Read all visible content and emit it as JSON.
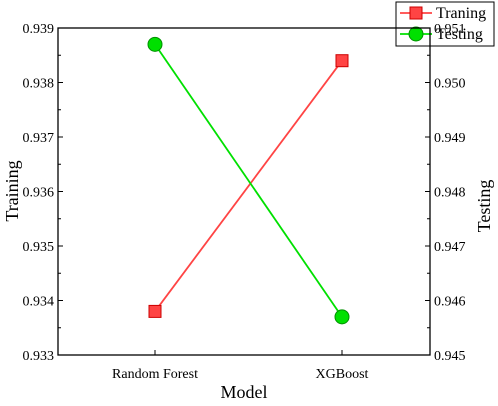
{
  "chart_data": {
    "type": "line",
    "xlabel": "Model",
    "categories": [
      "Random Forest",
      "XGBoost"
    ],
    "y_left": {
      "label": "Training",
      "range": [
        0.933,
        0.939
      ],
      "ticks": [
        "0.933",
        "0.934",
        "0.935",
        "0.936",
        "0.937",
        "0.938",
        "0.939"
      ]
    },
    "y_right": {
      "label": "Testing",
      "range": [
        0.945,
        0.951
      ],
      "ticks": [
        "0.945",
        "0.946",
        "0.947",
        "0.948",
        "0.949",
        "0.950",
        "0.951"
      ]
    },
    "series": [
      {
        "name": "Traning",
        "axis": "left",
        "values": [
          0.9338,
          0.9384
        ],
        "color": "#ff4444",
        "marker": "square"
      },
      {
        "name": "Testing",
        "axis": "right",
        "values": [
          0.9507,
          0.9457
        ],
        "color": "#00e000",
        "marker": "circle"
      }
    ],
    "legend": {
      "position": "top-right"
    },
    "grid": false
  }
}
